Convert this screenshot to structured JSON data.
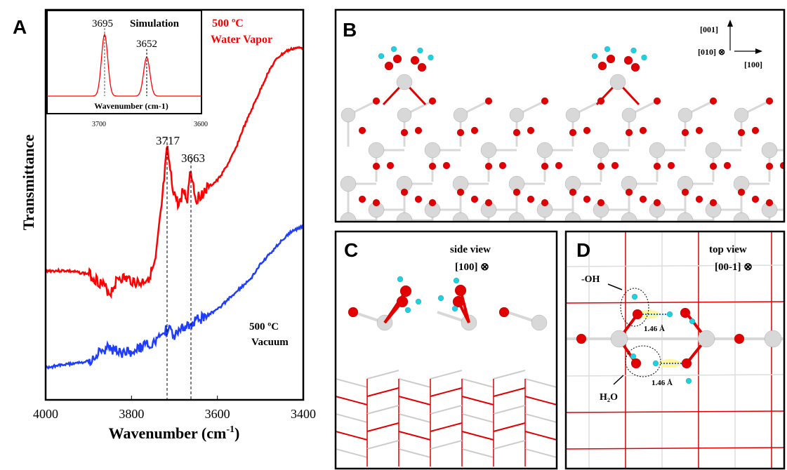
{
  "panels": {
    "A": {
      "letter": "A",
      "ylabel": "Transmittance",
      "xlabel": "Wavenumber (cm",
      "xlabel_sup": "-1",
      "xlabel_end": ")",
      "annot_water_1": "500 ºC",
      "annot_water_2": "Water Vapor",
      "annot_vac_1": "500 ºC",
      "annot_vac_2": "Vacuum",
      "peak1": "3717",
      "peak2": "3663",
      "inset": {
        "title": "Simulation",
        "peak1": "3695",
        "peak2": "3652",
        "xlabel": "Wavenumber (cm-1)",
        "tick1": "3700",
        "tick2": "3600"
      }
    },
    "B": {
      "letter": "B",
      "ax_001": "[001]",
      "ax_010": "[010] ⊗",
      "ax_100": "[100]"
    },
    "C": {
      "letter": "C",
      "view": "side view",
      "dir": "[100] ⊗"
    },
    "D": {
      "letter": "D",
      "view": "top view",
      "dir": "[00-1] ⊗",
      "oh": "-OH",
      "h2o": "H₂O",
      "dist1": "1.46 Å",
      "dist2": "1.46 Å"
    }
  },
  "colors": {
    "water": "#ff0000",
    "vacuum": "#1f3dff",
    "oxygen": "#e00000",
    "metal": "#d8d8d8",
    "hydrogen": "#20d0e0"
  },
  "chart_data": {
    "type": "line",
    "xlabel": "Wavenumber (cm-1)",
    "ylabel": "Transmittance",
    "xlim": [
      4000,
      3400
    ],
    "xticks": [
      4000,
      3800,
      3600,
      3400
    ],
    "series": [
      {
        "name": "500 ºC Water Vapor",
        "color": "#ff0000",
        "x": [
          4000,
          3950,
          3900,
          3870,
          3850,
          3830,
          3800,
          3780,
          3760,
          3745,
          3730,
          3717,
          3705,
          3690,
          3680,
          3670,
          3663,
          3650,
          3635,
          3620,
          3600,
          3580,
          3560,
          3540,
          3520,
          3500,
          3480,
          3460,
          3440,
          3420,
          3400
        ],
        "y": [
          0.4,
          0.4,
          0.39,
          0.36,
          0.33,
          0.38,
          0.37,
          0.36,
          0.38,
          0.42,
          0.6,
          0.78,
          0.66,
          0.6,
          0.65,
          0.62,
          0.72,
          0.62,
          0.64,
          0.66,
          0.68,
          0.72,
          0.77,
          0.84,
          0.9,
          0.96,
          1.02,
          1.06,
          1.08,
          1.09,
          1.09
        ]
      },
      {
        "name": "500 ºC Vacuum",
        "color": "#1f3dff",
        "x": [
          4000,
          3950,
          3900,
          3870,
          3850,
          3820,
          3800,
          3760,
          3740,
          3717,
          3700,
          3663,
          3640,
          3600,
          3560,
          3520,
          3500,
          3460,
          3430,
          3400
        ],
        "y": [
          0.1,
          0.11,
          0.12,
          0.15,
          0.16,
          0.14,
          0.15,
          0.17,
          0.18,
          0.22,
          0.2,
          0.24,
          0.25,
          0.28,
          0.33,
          0.38,
          0.42,
          0.48,
          0.52,
          0.54
        ]
      }
    ],
    "inset": {
      "title": "Simulation",
      "peaks": [
        {
          "x": 3695,
          "height": 1.0
        },
        {
          "x": 3652,
          "height": 0.63
        }
      ],
      "xticks": [
        3700,
        3600
      ]
    }
  }
}
